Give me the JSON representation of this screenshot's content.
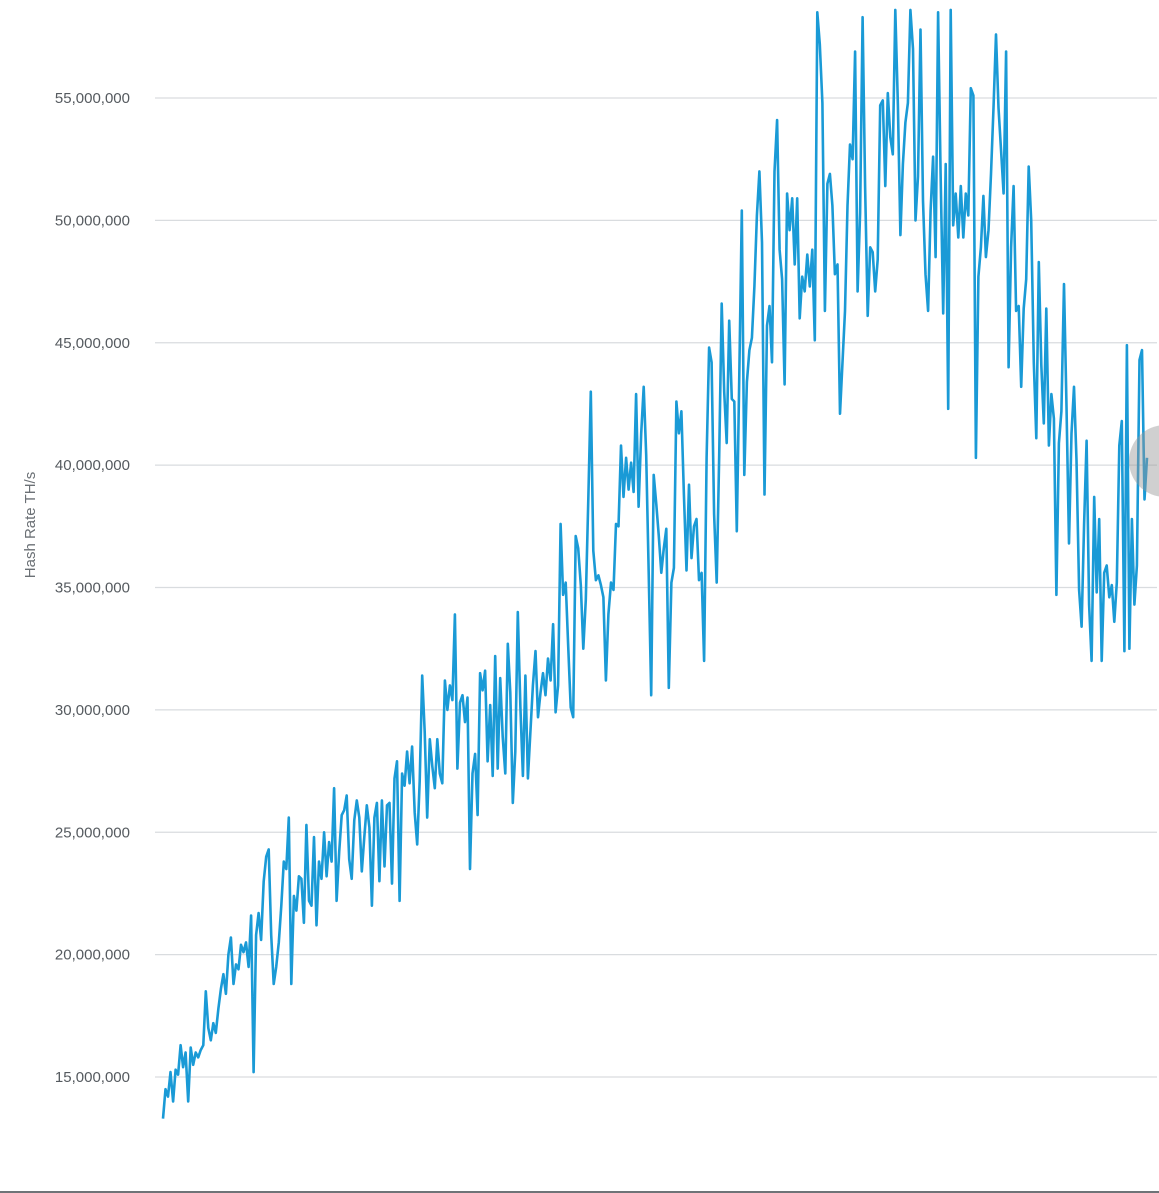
{
  "chart_data": {
    "type": "line",
    "title": "",
    "xlabel": "",
    "ylabel": "Hash Rate TH/s",
    "ylim": [
      11500000,
      58500000
    ],
    "grid": true,
    "y_ticks": [
      {
        "value": 15000000,
        "label": "15,000,000"
      },
      {
        "value": 20000000,
        "label": "20,000,000"
      },
      {
        "value": 25000000,
        "label": "25,000,000"
      },
      {
        "value": 30000000,
        "label": "30,000,000"
      },
      {
        "value": 35000000,
        "label": "35,000,000"
      },
      {
        "value": 40000000,
        "label": "40,000,000"
      },
      {
        "value": 45000000,
        "label": "45,000,000"
      },
      {
        "value": 50000000,
        "label": "50,000,000"
      },
      {
        "value": 55000000,
        "label": "55,000,000"
      }
    ],
    "series": [
      {
        "color": "#1a9ad6",
        "values": [
          13300000,
          14500000,
          14200000,
          15200000,
          14000000,
          15300000,
          15100000,
          16300000,
          15400000,
          16000000,
          14000000,
          16200000,
          15500000,
          16000000,
          15800000,
          16100000,
          16300000,
          18500000,
          17000000,
          16500000,
          17200000,
          16800000,
          17800000,
          18600000,
          19200000,
          18400000,
          20000000,
          20700000,
          18800000,
          19600000,
          19400000,
          20400000,
          20100000,
          20500000,
          19500000,
          21600000,
          15200000,
          20800000,
          21700000,
          20600000,
          23000000,
          24000000,
          24300000,
          20800000,
          18800000,
          19500000,
          20500000,
          22000000,
          23800000,
          23500000,
          25600000,
          18800000,
          22400000,
          21800000,
          23200000,
          23100000,
          21300000,
          25300000,
          22200000,
          22000000,
          24800000,
          21200000,
          23800000,
          23100000,
          25000000,
          23200000,
          24600000,
          23800000,
          26800000,
          22200000,
          24200000,
          25700000,
          25900000,
          26500000,
          23900000,
          23100000,
          25500000,
          26300000,
          25600000,
          23400000,
          24800000,
          26100000,
          25200000,
          22000000,
          25600000,
          26200000,
          23000000,
          26300000,
          23600000,
          26100000,
          26200000,
          22900000,
          27200000,
          27900000,
          22200000,
          27400000,
          26900000,
          28300000,
          27000000,
          28500000,
          25800000,
          24500000,
          27100000,
          31400000,
          29100000,
          25600000,
          28800000,
          27700000,
          26800000,
          28800000,
          27400000,
          27000000,
          31200000,
          30000000,
          31000000,
          30400000,
          33900000,
          27600000,
          30300000,
          30600000,
          29500000,
          30500000,
          23500000,
          27400000,
          28200000,
          25700000,
          31500000,
          30800000,
          31600000,
          27900000,
          30200000,
          27300000,
          32200000,
          27600000,
          31300000,
          28900000,
          27400000,
          32700000,
          30700000,
          26200000,
          28300000,
          34000000,
          30100000,
          27300000,
          31400000,
          27200000,
          29100000,
          31000000,
          32400000,
          29700000,
          30700000,
          31500000,
          30600000,
          32100000,
          31200000,
          33500000,
          29900000,
          31000000,
          37600000,
          34700000,
          35200000,
          32600000,
          30100000,
          29700000,
          37100000,
          36600000,
          35100000,
          32500000,
          34500000,
          38600000,
          43000000,
          36500000,
          35300000,
          35500000,
          35100000,
          34600000,
          31200000,
          33900000,
          35200000,
          34900000,
          37600000,
          37500000,
          40800000,
          38700000,
          40300000,
          39000000,
          40100000,
          38900000,
          42900000,
          38300000,
          41300000,
          43200000,
          40400000,
          35600000,
          30600000,
          39600000,
          38400000,
          37100000,
          35600000,
          36600000,
          37400000,
          30900000,
          35200000,
          35800000,
          42600000,
          41300000,
          42200000,
          38800000,
          35700000,
          39200000,
          36200000,
          37500000,
          37800000,
          35300000,
          35600000,
          32000000,
          40300000,
          44800000,
          44200000,
          38000000,
          35200000,
          40400000,
          46600000,
          43000000,
          40900000,
          45900000,
          42700000,
          42600000,
          37300000,
          43700000,
          50400000,
          39600000,
          43400000,
          44700000,
          45200000,
          47300000,
          50200000,
          52000000,
          49100000,
          38800000,
          45700000,
          46500000,
          44200000,
          52000000,
          54100000,
          48800000,
          47600000,
          43300000,
          51100000,
          49600000,
          50900000,
          48200000,
          50900000,
          46000000,
          47700000,
          47100000,
          48600000,
          47300000,
          48800000,
          45100000,
          58500000,
          57200000,
          54800000,
          46300000,
          51500000,
          51900000,
          50600000,
          47800000,
          48200000,
          42100000,
          44200000,
          46300000,
          50600000,
          53100000,
          52500000,
          56900000,
          47100000,
          50300000,
          58300000,
          51400000,
          46100000,
          48900000,
          48700000,
          47100000,
          48400000,
          54700000,
          54900000,
          51400000,
          55200000,
          53400000,
          52700000,
          58600000,
          54700000,
          49400000,
          52300000,
          54000000,
          54800000,
          58600000,
          57000000,
          50000000,
          51800000,
          57800000,
          50800000,
          47800000,
          46300000,
          50400000,
          52600000,
          48500000,
          58500000,
          51900000,
          46200000,
          52300000,
          42300000,
          58600000,
          49800000,
          51100000,
          49300000,
          51400000,
          49300000,
          51100000,
          50200000,
          55400000,
          55100000,
          40300000,
          47700000,
          48900000,
          51000000,
          48500000,
          49600000,
          51900000,
          54600000,
          57600000,
          54600000,
          52900000,
          51100000,
          56900000,
          44000000,
          48900000,
          51400000,
          46300000,
          46500000,
          43200000,
          46400000,
          47600000,
          52200000,
          50000000,
          44200000,
          41100000,
          48300000,
          44100000,
          41700000,
          46400000,
          40800000,
          42900000,
          41900000,
          34700000,
          40900000,
          42200000,
          47400000,
          42400000,
          36800000,
          41300000,
          43200000,
          40200000,
          34900000,
          33400000,
          37600000,
          41000000,
          34300000,
          32000000,
          38700000,
          34800000,
          37800000,
          32000000,
          35600000,
          35900000,
          34600000,
          35100000,
          33600000,
          35200000,
          40800000,
          41800000,
          32400000,
          44900000,
          32500000,
          37800000,
          34300000,
          35900000,
          44300000,
          44700000,
          38600000,
          40300000
        ]
      }
    ]
  }
}
